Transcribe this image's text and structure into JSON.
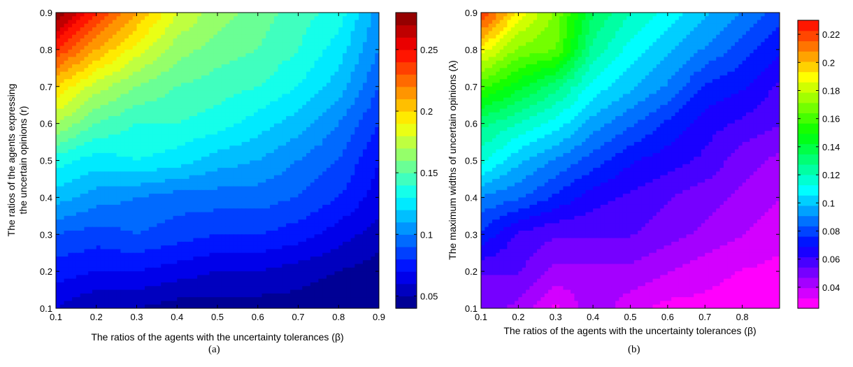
{
  "figure": {
    "panel_a_caption": "(a)",
    "panel_b_caption": "(b)"
  },
  "chart_data": [
    {
      "type": "heatmap",
      "subtype": "filled-contour",
      "colormap": "jet",
      "title": "",
      "xlabel": "The ratios of the agents with the uncertainty tolerances (β)",
      "ylabel_line1": "The ratios of the agents expressing",
      "ylabel_line2": "the uncertain opinions (r)",
      "xlim": [
        0.1,
        0.9
      ],
      "ylim": [
        0.1,
        0.9
      ],
      "clim": [
        0.04,
        0.28
      ],
      "x": [
        0.1,
        0.2,
        0.3,
        0.4,
        0.5,
        0.6,
        0.7,
        0.8,
        0.9
      ],
      "y": [
        0.1,
        0.2,
        0.3,
        0.4,
        0.5,
        0.6,
        0.7,
        0.8,
        0.9
      ],
      "z": [
        [
          0.06,
          0.05,
          0.05,
          0.045,
          0.045,
          0.045,
          0.045,
          0.04,
          0.04
        ],
        [
          0.075,
          0.07,
          0.07,
          0.065,
          0.06,
          0.06,
          0.055,
          0.05,
          0.045
        ],
        [
          0.09,
          0.085,
          0.09,
          0.085,
          0.08,
          0.08,
          0.075,
          0.065,
          0.055
        ],
        [
          0.115,
          0.105,
          0.1,
          0.095,
          0.095,
          0.095,
          0.09,
          0.08,
          0.065
        ],
        [
          0.135,
          0.125,
          0.13,
          0.125,
          0.115,
          0.11,
          0.1,
          0.09,
          0.07
        ],
        [
          0.17,
          0.15,
          0.14,
          0.14,
          0.135,
          0.125,
          0.115,
          0.1,
          0.08
        ],
        [
          0.2,
          0.175,
          0.16,
          0.15,
          0.145,
          0.14,
          0.13,
          0.115,
          0.09
        ],
        [
          0.24,
          0.21,
          0.185,
          0.165,
          0.155,
          0.15,
          0.14,
          0.125,
          0.1
        ],
        [
          0.28,
          0.24,
          0.21,
          0.18,
          0.165,
          0.155,
          0.145,
          0.135,
          0.105
        ]
      ],
      "xticks": [
        "0.1",
        "0.2",
        "0.3",
        "0.4",
        "0.5",
        "0.6",
        "0.7",
        "0.8",
        "0.9"
      ],
      "yticks": [
        "0.1",
        "0.2",
        "0.3",
        "0.4",
        "0.5",
        "0.6",
        "0.7",
        "0.8",
        "0.9"
      ],
      "colorbar_ticks": [
        "0.05",
        "0.1",
        "0.15",
        "0.2",
        "0.25"
      ]
    },
    {
      "type": "heatmap",
      "subtype": "filled-contour",
      "colormap": "hsv-reversed",
      "title": "",
      "xlabel": "The ratios of the agents with the uncertainty tolerances (β)",
      "ylabel": "The maximum widths of uncertain opinions (λ)",
      "xlim": [
        0.1,
        0.9
      ],
      "ylim": [
        0.1,
        0.9
      ],
      "clim": [
        0.025,
        0.23
      ],
      "x": [
        0.1,
        0.2,
        0.3,
        0.4,
        0.5,
        0.6,
        0.7,
        0.8,
        0.9
      ],
      "y": [
        0.1,
        0.2,
        0.3,
        0.4,
        0.5,
        0.6,
        0.7,
        0.8,
        0.9
      ],
      "z": [
        [
          0.05,
          0.045,
          0.03,
          0.045,
          0.035,
          0.03,
          0.03,
          0.028,
          0.027
        ],
        [
          0.055,
          0.055,
          0.045,
          0.045,
          0.045,
          0.04,
          0.035,
          0.032,
          0.03
        ],
        [
          0.075,
          0.06,
          0.055,
          0.055,
          0.055,
          0.05,
          0.045,
          0.04,
          0.035
        ],
        [
          0.09,
          0.085,
          0.075,
          0.065,
          0.06,
          0.055,
          0.05,
          0.045,
          0.04
        ],
        [
          0.115,
          0.1,
          0.09,
          0.08,
          0.07,
          0.065,
          0.06,
          0.05,
          0.045
        ],
        [
          0.13,
          0.12,
          0.11,
          0.095,
          0.085,
          0.075,
          0.065,
          0.06,
          0.055
        ],
        [
          0.16,
          0.145,
          0.13,
          0.11,
          0.1,
          0.09,
          0.075,
          0.07,
          0.06
        ],
        [
          0.19,
          0.17,
          0.165,
          0.125,
          0.11,
          0.1,
          0.09,
          0.08,
          0.07
        ],
        [
          0.225,
          0.19,
          0.17,
          0.135,
          0.12,
          0.11,
          0.1,
          0.09,
          0.08
        ]
      ],
      "xticks": [
        "0.1",
        "0.2",
        "0.3",
        "0.4",
        "0.5",
        "0.6",
        "0.7",
        "0.8"
      ],
      "yticks": [
        "0.1",
        "0.2",
        "0.3",
        "0.4",
        "0.5",
        "0.6",
        "0.7",
        "0.8",
        "0.9"
      ],
      "colorbar_ticks": [
        "0.04",
        "0.06",
        "0.08",
        "0.1",
        "0.12",
        "0.14",
        "0.16",
        "0.18",
        "0.2",
        "0.22"
      ]
    }
  ]
}
